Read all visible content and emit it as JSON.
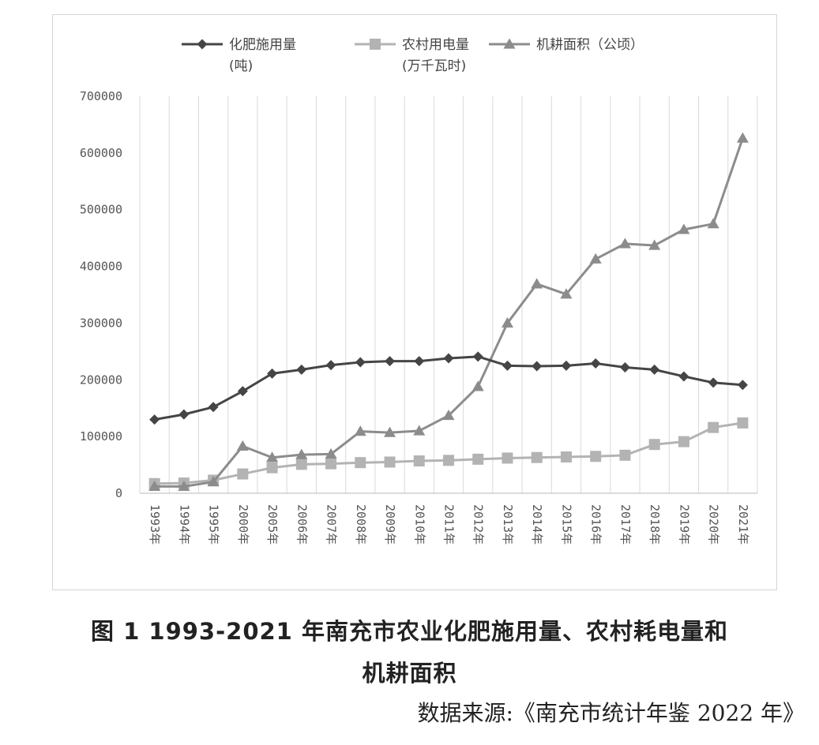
{
  "figure": {
    "caption_line1": "图 1 1993-2021 年南充市农业化肥施用量、农村耗电量和",
    "caption_line2": "机耕面积",
    "source": "数据来源:《南充市统计年鉴 2022 年》"
  },
  "chart_data": {
    "type": "line",
    "title": "",
    "xlabel": "",
    "ylabel": "",
    "categories": [
      "1993年",
      "1994年",
      "1995年",
      "2000年",
      "2005年",
      "2006年",
      "2007年",
      "2008年",
      "2009年",
      "2010年",
      "2011年",
      "2012年",
      "2013年",
      "2014年",
      "2015年",
      "2016年",
      "2017年",
      "2018年",
      "2019年",
      "2020年",
      "2021年"
    ],
    "ylim": [
      0,
      700000
    ],
    "yticks": [
      0,
      100000,
      200000,
      300000,
      400000,
      500000,
      600000,
      700000
    ],
    "grid": "vertical",
    "legend_position": "top",
    "series": [
      {
        "name": "化肥施用量",
        "unit": "(吨)",
        "marker": "diamond",
        "color": "#454545",
        "values": [
          130000,
          139000,
          152000,
          180000,
          211000,
          218000,
          226000,
          231000,
          233000,
          233000,
          238000,
          241000,
          225000,
          224000,
          225000,
          229000,
          222000,
          218000,
          206000,
          195000,
          191000
        ]
      },
      {
        "name": "农村用电量",
        "unit": "(万千瓦时)",
        "marker": "square",
        "color": "#b3b3b3",
        "values": [
          17000,
          18000,
          23000,
          34000,
          45000,
          51000,
          52000,
          54000,
          55000,
          57000,
          58000,
          60000,
          62000,
          63000,
          64000,
          65000,
          67000,
          86000,
          91000,
          116000,
          124000
        ]
      },
      {
        "name": "机耕面积（公顷）",
        "unit": "",
        "marker": "triangle",
        "color": "#8c8c8c",
        "values": [
          12000,
          12000,
          20000,
          83000,
          63000,
          68000,
          69000,
          109000,
          107000,
          110000,
          137000,
          188000,
          300000,
          369000,
          351000,
          413000,
          440000,
          437000,
          465000,
          475000,
          626000
        ]
      }
    ]
  }
}
